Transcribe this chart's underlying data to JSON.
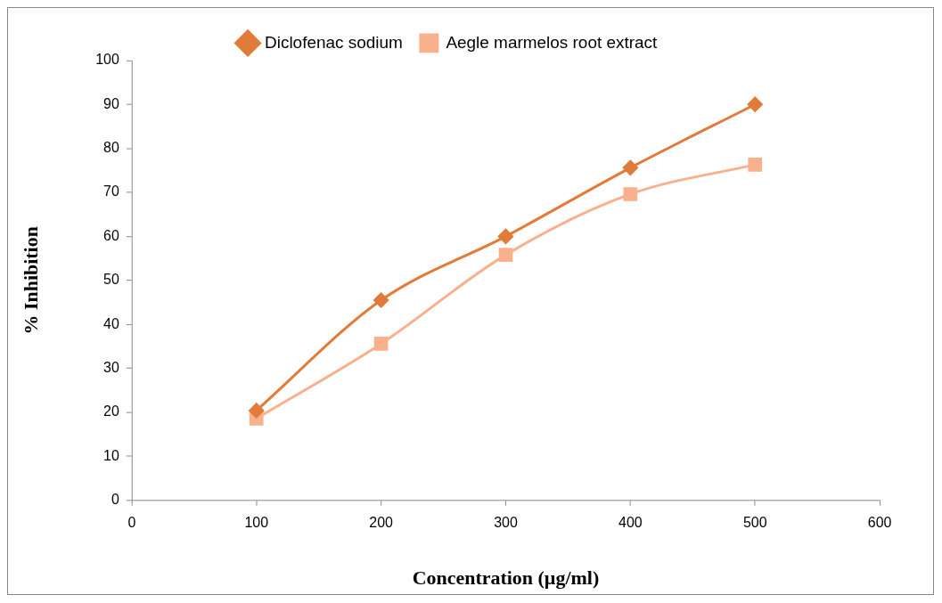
{
  "chart_data": {
    "type": "line",
    "xlabel": "Concentration (µg/ml)",
    "ylabel": "% Inhibition",
    "x": [
      100,
      200,
      300,
      400,
      500
    ],
    "series": [
      {
        "name": "Diclofenac sodium",
        "color": "#e07b39",
        "marker": "diamond",
        "values": [
          20.4,
          45.5,
          60,
          75.6,
          90
        ]
      },
      {
        "name": "Aegle marmelos root extract",
        "color": "#f9b08c",
        "marker": "square",
        "values": [
          18.6,
          35.6,
          55.8,
          69.6,
          76.3
        ]
      }
    ],
    "xlim": [
      0,
      600
    ],
    "xticks": [
      0,
      100,
      200,
      300,
      400,
      500,
      600
    ],
    "ylim": [
      0,
      100
    ],
    "yticks": [
      0,
      10,
      20,
      30,
      40,
      50,
      60,
      70,
      80,
      90,
      100
    ],
    "grid": false,
    "legend": "top",
    "line_style": "solid"
  }
}
